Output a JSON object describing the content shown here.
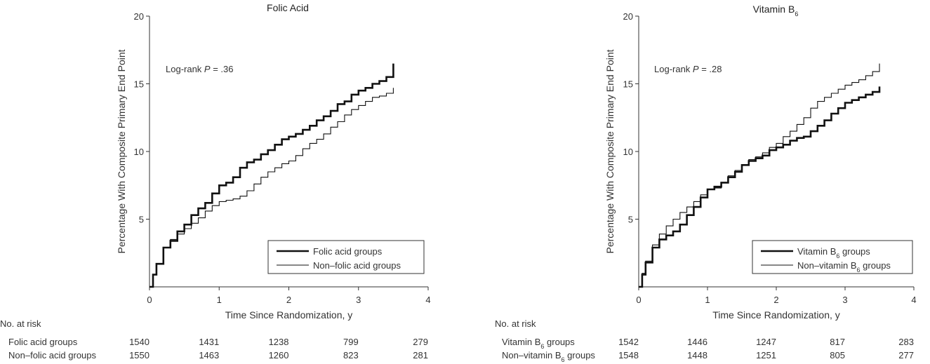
{
  "chart_data": [
    {
      "type": "line",
      "title": "Folic Acid",
      "xlabel": "Time Since Randomization, y",
      "ylabel": "Percentage With Composite Primary End Point",
      "xlim": [
        0,
        4
      ],
      "ylim": [
        0,
        20
      ],
      "xticks": [
        "0",
        "1",
        "2",
        "3",
        "4"
      ],
      "yticks": [
        "5",
        "10",
        "15",
        "20"
      ],
      "annotation": {
        "prefix": "Log-rank ",
        "italic": "P",
        "suffix": " = .36"
      },
      "legend_position": "bottom-right",
      "series": [
        {
          "name": "Folic acid groups",
          "style": "thick",
          "x": [
            0,
            0.05,
            0.1,
            0.2,
            0.3,
            0.4,
            0.5,
            0.6,
            0.7,
            0.8,
            0.9,
            1.0,
            1.1,
            1.2,
            1.3,
            1.4,
            1.5,
            1.6,
            1.7,
            1.8,
            1.9,
            2.0,
            2.1,
            2.2,
            2.3,
            2.4,
            2.5,
            2.6,
            2.7,
            2.8,
            2.9,
            3.0,
            3.1,
            3.2,
            3.3,
            3.4,
            3.5
          ],
          "y": [
            0,
            0.9,
            1.7,
            2.9,
            3.4,
            4.1,
            4.6,
            5.3,
            5.8,
            6.2,
            6.9,
            7.5,
            7.7,
            8.1,
            8.8,
            9.2,
            9.4,
            9.8,
            10.1,
            10.5,
            10.9,
            11.1,
            11.3,
            11.6,
            11.9,
            12.3,
            12.6,
            13.0,
            13.5,
            13.7,
            14.2,
            14.5,
            14.7,
            15.0,
            15.2,
            15.5,
            16.5
          ]
        },
        {
          "name": "Non–folic acid groups",
          "style": "thin",
          "x": [
            0,
            0.05,
            0.1,
            0.2,
            0.3,
            0.4,
            0.5,
            0.6,
            0.7,
            0.8,
            0.9,
            1.0,
            1.1,
            1.2,
            1.3,
            1.4,
            1.5,
            1.6,
            1.7,
            1.8,
            1.9,
            2.0,
            2.1,
            2.2,
            2.3,
            2.4,
            2.5,
            2.6,
            2.7,
            2.8,
            2.9,
            3.0,
            3.1,
            3.2,
            3.3,
            3.4,
            3.5
          ],
          "y": [
            0,
            0.9,
            1.7,
            2.9,
            3.5,
            3.9,
            4.3,
            4.7,
            5.1,
            5.6,
            6.0,
            6.3,
            6.4,
            6.5,
            6.7,
            7.1,
            7.6,
            8.1,
            8.5,
            8.8,
            9.1,
            9.3,
            9.7,
            10.2,
            10.6,
            10.9,
            11.3,
            11.8,
            12.2,
            12.7,
            13.1,
            13.4,
            13.7,
            14.0,
            14.1,
            14.3,
            14.7
          ]
        }
      ],
      "risk_table": {
        "header": "No. at risk",
        "rows": [
          {
            "label": "Folic acid groups",
            "values": [
              "1540",
              "1431",
              "1238",
              "799",
              "279"
            ]
          },
          {
            "label": "Non–folic acid groups",
            "values": [
              "1550",
              "1463",
              "1260",
              "823",
              "281"
            ]
          }
        ]
      }
    },
    {
      "type": "line",
      "title": "Vitamin B",
      "title_sub": "6",
      "xlabel": "Time Since Randomization, y",
      "ylabel": "Percentage With Composite Primary End Point",
      "xlim": [
        0,
        4
      ],
      "ylim": [
        0,
        20
      ],
      "xticks": [
        "0",
        "1",
        "2",
        "3",
        "4"
      ],
      "yticks": [
        "5",
        "10",
        "15",
        "20"
      ],
      "annotation": {
        "prefix": "Log-rank ",
        "italic": "P",
        "suffix": " = .28"
      },
      "legend_position": "bottom-right",
      "series": [
        {
          "name": "Vitamin B",
          "name_sub": "6",
          "name_suffix": " groups",
          "style": "thick",
          "x": [
            0,
            0.05,
            0.1,
            0.2,
            0.3,
            0.4,
            0.5,
            0.6,
            0.7,
            0.8,
            0.9,
            1.0,
            1.1,
            1.2,
            1.3,
            1.4,
            1.5,
            1.6,
            1.7,
            1.8,
            1.9,
            2.0,
            2.1,
            2.2,
            2.3,
            2.4,
            2.5,
            2.6,
            2.7,
            2.8,
            2.9,
            3.0,
            3.1,
            3.2,
            3.3,
            3.4,
            3.5
          ],
          "y": [
            0,
            0.9,
            1.8,
            2.9,
            3.5,
            3.8,
            4.1,
            4.6,
            5.3,
            5.9,
            6.6,
            7.2,
            7.4,
            7.7,
            8.1,
            8.5,
            9.0,
            9.3,
            9.5,
            9.7,
            10.1,
            10.3,
            10.5,
            10.8,
            11.0,
            11.1,
            11.5,
            11.9,
            12.3,
            12.8,
            13.2,
            13.6,
            13.8,
            14.0,
            14.2,
            14.4,
            14.8
          ]
        },
        {
          "name": "Non–vitamin B",
          "name_sub": "6",
          "name_suffix": " groups",
          "style": "thin",
          "x": [
            0,
            0.05,
            0.1,
            0.2,
            0.3,
            0.4,
            0.5,
            0.6,
            0.7,
            0.8,
            0.9,
            1.0,
            1.1,
            1.2,
            1.3,
            1.4,
            1.5,
            1.6,
            1.7,
            1.8,
            1.9,
            2.0,
            2.1,
            2.2,
            2.3,
            2.4,
            2.5,
            2.6,
            2.7,
            2.8,
            2.9,
            3.0,
            3.1,
            3.2,
            3.3,
            3.4,
            3.5
          ],
          "y": [
            0,
            1.0,
            1.9,
            3.1,
            3.9,
            4.5,
            5.0,
            5.5,
            5.9,
            6.3,
            6.8,
            7.2,
            7.3,
            7.7,
            8.2,
            8.6,
            9.0,
            9.4,
            9.6,
            9.9,
            10.3,
            10.6,
            11.1,
            11.5,
            12.0,
            12.5,
            13.2,
            13.7,
            14.0,
            14.3,
            14.6,
            14.9,
            15.1,
            15.3,
            15.6,
            15.9,
            16.5
          ]
        }
      ],
      "risk_table": {
        "header": "No. at risk",
        "rows": [
          {
            "label": "Vitamin B",
            "label_sub": "6",
            "label_suffix": " groups",
            "values": [
              "1542",
              "1446",
              "1247",
              "817",
              "283"
            ]
          },
          {
            "label": "Non–vitamin B",
            "label_sub": "6",
            "label_suffix": " groups",
            "values": [
              "1548",
              "1448",
              "1251",
              "805",
              "277"
            ]
          }
        ]
      }
    }
  ]
}
